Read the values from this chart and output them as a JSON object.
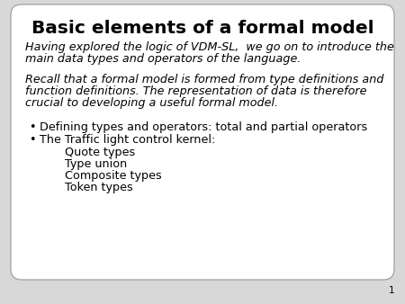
{
  "title": "Basic elements of a formal model",
  "background_color": "#ffffff",
  "outer_background": "#d8d8d8",
  "border_color": "#999999",
  "text_color": "#000000",
  "slide_number": "1",
  "paragraph1_line1": "Having explored the logic of VDM-SL,  we go on to introduce the",
  "paragraph1_line2": "main data types and operators of the language.",
  "paragraph2_line1": "Recall that a formal model is formed from type definitions and",
  "paragraph2_line2": "function definitions. The representation of data is therefore",
  "paragraph2_line3": "crucial to developing a useful formal model.",
  "bullet1": "Defining types and operators: total and partial operators",
  "bullet2": "The Traffic light control kernel:",
  "sub_items": [
    "Quote types",
    "Type union",
    "Composite types",
    "Token types"
  ],
  "title_fontsize": 14.5,
  "body_fontsize": 9.2,
  "slide_num_fontsize": 7.5
}
